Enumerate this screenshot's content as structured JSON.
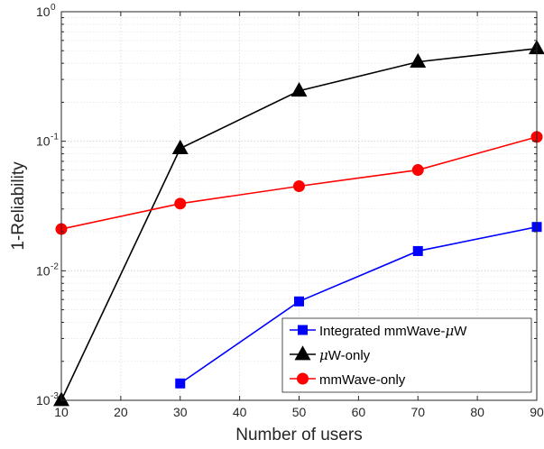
{
  "chart_data": {
    "type": "line",
    "xlabel": "Number of users",
    "ylabel": "1-Reliability",
    "xlim": [
      10,
      90
    ],
    "ylim": [
      0.001,
      1
    ],
    "y_scale": "log",
    "grid": true,
    "minor_grid": true,
    "legend_position": "bottom-right",
    "x_ticks": [
      "10",
      "20",
      "30",
      "40",
      "50",
      "60",
      "70",
      "80",
      "90"
    ],
    "x_tick_values": [
      10,
      20,
      30,
      40,
      50,
      60,
      70,
      80,
      90
    ],
    "y_ticks": [
      {
        "value": 1,
        "base": "10",
        "exp": "0"
      },
      {
        "value": 0.1,
        "base": "10",
        "exp": "-1"
      },
      {
        "value": 0.01,
        "base": "10",
        "exp": "-2"
      },
      {
        "value": 0.001,
        "base": "10",
        "exp": "-3"
      }
    ],
    "series": [
      {
        "name": "Integrated mmWave-",
        "name_suffix": "μ",
        "name_tail": "W",
        "color": "#0000ff",
        "marker": "square",
        "x": [
          30,
          50,
          70,
          90
        ],
        "y": [
          0.00135,
          0.0058,
          0.0142,
          0.0218
        ]
      },
      {
        "name": "",
        "name_suffix": "μ",
        "name_tail": "W-only",
        "color": "#000000",
        "marker": "triangle",
        "x": [
          10,
          30,
          50,
          70,
          90
        ],
        "y": [
          0.001,
          0.088,
          0.245,
          0.41,
          0.52
        ]
      },
      {
        "name": "mmWave-only",
        "name_suffix": "",
        "name_tail": "",
        "color": "#ff0000",
        "marker": "circle",
        "x": [
          10,
          30,
          50,
          70,
          90
        ],
        "y": [
          0.021,
          0.033,
          0.045,
          0.06,
          0.108
        ]
      }
    ]
  }
}
